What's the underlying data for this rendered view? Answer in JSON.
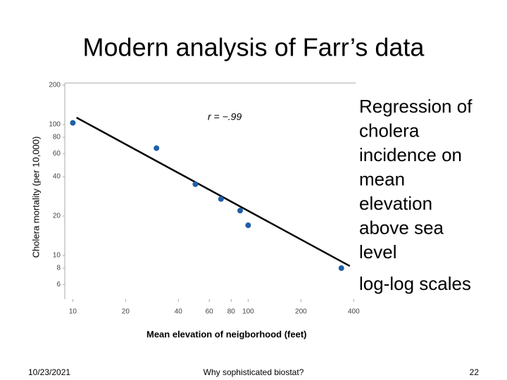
{
  "slide": {
    "title": "Modern analysis of Farr’s data",
    "side_text": [
      "Regression of",
      "cholera",
      "incidence on",
      "mean",
      "elevation",
      "above sea",
      "level"
    ],
    "note": "log-log scales",
    "footer": {
      "date": "10/23/2021",
      "center": "Why sophisticated biostat?",
      "page": "22"
    }
  },
  "chart_data": {
    "type": "scatter",
    "x_label": "Mean elevation of neigborhood (feet)",
    "y_label": "Cholera mortality (per 10,000)",
    "annotation": "r = −.99",
    "x": [
      10,
      30,
      50,
      70,
      90,
      100,
      340
    ],
    "y": [
      103,
      66,
      35,
      27,
      22,
      17,
      8
    ],
    "color": "#1f5fa8",
    "regression": {
      "x": [
        10.5,
        380
      ],
      "y": [
        113,
        8.3
      ],
      "color": "#000000"
    },
    "log_x": true,
    "log_y": true,
    "xlim": [
      9,
      410
    ],
    "ylim": [
      5,
      200
    ],
    "xticks": [
      10,
      20,
      40,
      60,
      80,
      100,
      200,
      400
    ],
    "yticks": [
      6,
      8,
      10,
      20,
      40,
      60,
      80,
      100,
      200
    ],
    "grid": false
  }
}
